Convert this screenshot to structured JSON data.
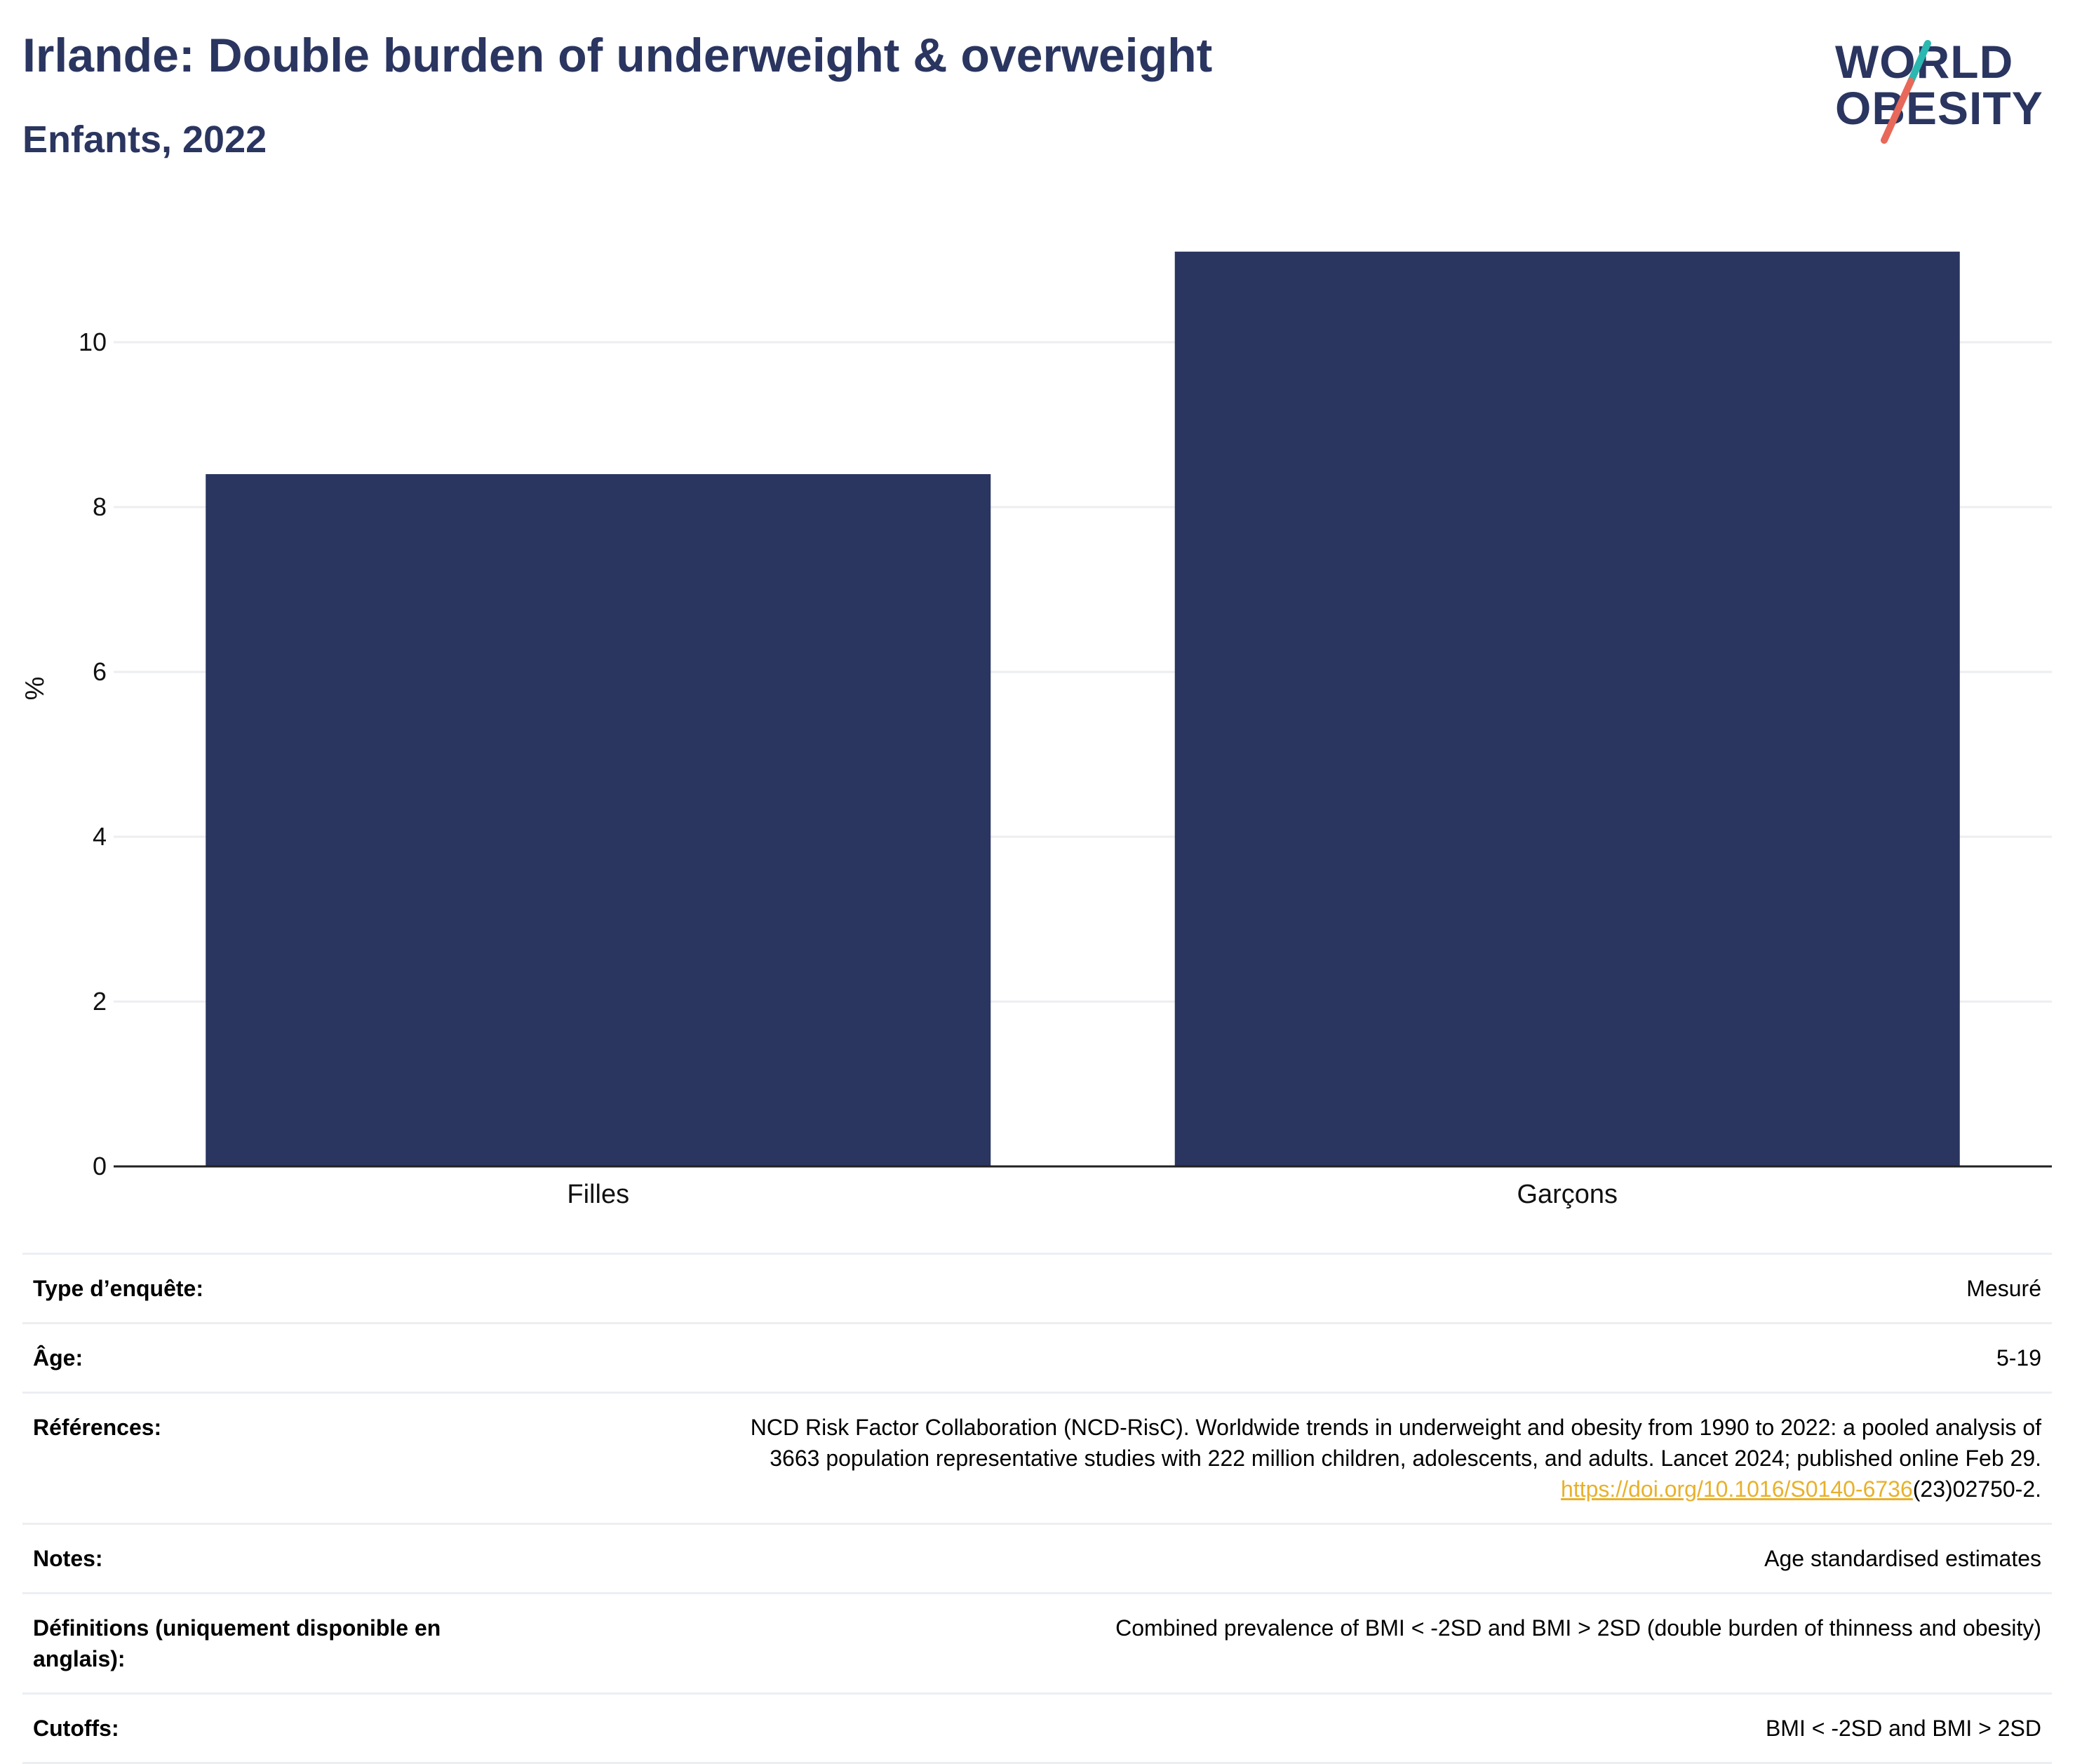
{
  "header": {
    "title": "Irlande: Double burden of underweight & overweight",
    "subtitle": "Enfants, 2022"
  },
  "logo": {
    "line1": "WORLD",
    "line2": "OBESITY",
    "slash_colors": [
      "#2bb8b0",
      "#e8685a"
    ]
  },
  "chart_data": {
    "type": "bar",
    "categories": [
      "Filles",
      "Garçons"
    ],
    "values": [
      8.4,
      11.1
    ],
    "title": "Irlande: Double burden of underweight & overweight",
    "subtitle": "Enfants, 2022",
    "xlabel": "",
    "ylabel": "%",
    "ylim": [
      0,
      11.6
    ],
    "yticks": [
      0,
      2,
      4,
      6,
      8,
      10
    ],
    "grid": true,
    "legend": "none",
    "bar_color": "#2a3560"
  },
  "meta": {
    "rows": [
      {
        "label": "Type d’enquête:",
        "value": "Mesuré"
      },
      {
        "label": "Âge:",
        "value": "5-19"
      },
      {
        "label": "Références:",
        "value_lines": [
          "NCD Risk Factor Collaboration (NCD-RisC). Worldwide trends in underweight and obesity from 1990 to 2022: a pooled analysis of",
          "3663 population representative studies with 222 million children, adolescents, and adults. Lancet 2024; published online Feb 29."
        ],
        "link": "https://doi.org/10.1016/S0140-6736",
        "link_suffix": "(23)02750-2."
      },
      {
        "label": "Notes:",
        "value": "Age standardised estimates"
      },
      {
        "label": "Définitions (uniquement disponible en anglais):",
        "value": "Combined prevalence of BMI < -2SD and BMI > 2SD (double burden of thinness and obesity)"
      },
      {
        "label": "Cutoffs:",
        "value": "BMI < -2SD and BMI > 2SD"
      }
    ]
  }
}
